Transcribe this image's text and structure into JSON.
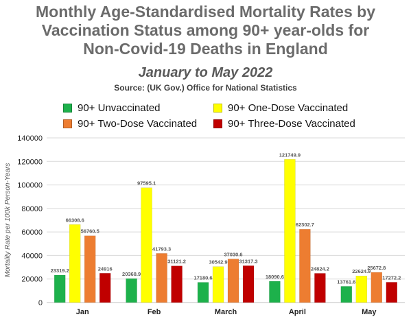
{
  "chart_data": {
    "type": "bar",
    "title_lines": [
      "Monthly Age-Standardised Mortality Rates by",
      "Vaccination Status among 90+ year-olds for",
      "Non-Covid-19 Deaths in England"
    ],
    "subtitle": "January to May 2022",
    "source": "Source: (UK Gov.) Office for National Statistics",
    "xlabel": "",
    "ylabel": "Mortality Rate per 100k Person-Years",
    "ylim": [
      0,
      140000
    ],
    "yticks": [
      0,
      20000,
      40000,
      60000,
      80000,
      100000,
      120000,
      140000
    ],
    "ytick_labels": [
      "0",
      "20000",
      "40000",
      "60000",
      "80000",
      "100000",
      "120000",
      "140000"
    ],
    "grid": true,
    "legend_position": "top",
    "categories": [
      "Jan",
      "Feb",
      "March",
      "April",
      "May"
    ],
    "series": [
      {
        "name": "90+ Unvaccinated",
        "color": "#1db14b",
        "values": [
          23319.2,
          20368.9,
          17180.6,
          18090.6,
          13761.6
        ],
        "labels": [
          "23319.2",
          "20368.9",
          "17180.6",
          "18090.6",
          "13761.6"
        ]
      },
      {
        "name": "90+ One-Dose Vaccinated",
        "color": "#ffff00",
        "values": [
          66308.6,
          97595.1,
          30542.9,
          121749.9,
          22624.9
        ],
        "labels": [
          "66308.6",
          "97595.1",
          "30542.9",
          "121749.9",
          "22624.9"
        ]
      },
      {
        "name": "90+ Two-Dose Vaccinated",
        "color": "#ed7d31",
        "values": [
          56760.5,
          41793.3,
          37030.6,
          62302.7,
          25672.8
        ],
        "labels": [
          "56760.5",
          "41793.3",
          "37030.6",
          "62302.7",
          "25672.8"
        ]
      },
      {
        "name": "90+ Three-Dose Vaccinated",
        "color": "#c00000",
        "values": [
          24916,
          31121.2,
          31317.3,
          24824.2,
          17272.2
        ],
        "labels": [
          "24916",
          "31121.2",
          "31317.3",
          "24824.2",
          "17272.2"
        ]
      }
    ]
  }
}
